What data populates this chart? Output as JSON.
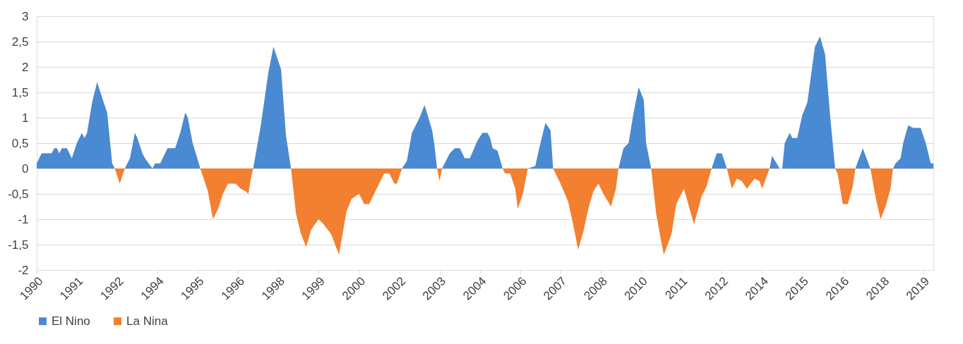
{
  "chart_data": {
    "type": "area",
    "legend": "bottom",
    "grid": "y",
    "ylim": [
      -2,
      3
    ],
    "yticks": [
      -2,
      {
        "value": -1.5,
        "label": "-1,5"
      },
      -1,
      {
        "value": -0.5,
        "label": "-0,5"
      },
      0,
      {
        "value": 0.5,
        "label": "0,5"
      },
      1,
      {
        "value": 1.5,
        "label": "1,5"
      },
      2,
      {
        "value": 2.5,
        "label": "2,5"
      },
      3
    ],
    "xlim": [
      "1990-01",
      "2019-09"
    ],
    "xticks": [
      {
        "value": "1990-01",
        "label": "1990"
      },
      {
        "value": "1991-05",
        "label": "1991"
      },
      {
        "value": "1992-09",
        "label": "1992"
      },
      {
        "value": "1994-01",
        "label": "1994"
      },
      {
        "value": "1995-05",
        "label": "1995"
      },
      {
        "value": "1996-09",
        "label": "1996"
      },
      {
        "value": "1998-01",
        "label": "1998"
      },
      {
        "value": "1999-05",
        "label": "1999"
      },
      {
        "value": "2000-09",
        "label": "2000"
      },
      {
        "value": "2002-01",
        "label": "2002"
      },
      {
        "value": "2003-05",
        "label": "2003"
      },
      {
        "value": "2004-09",
        "label": "2004"
      },
      {
        "value": "2006-01",
        "label": "2006"
      },
      {
        "value": "2007-05",
        "label": "2007"
      },
      {
        "value": "2008-09",
        "label": "2008"
      },
      {
        "value": "2010-01",
        "label": "2010"
      },
      {
        "value": "2011-05",
        "label": "2011"
      },
      {
        "value": "2012-09",
        "label": "2012"
      },
      {
        "value": "2014-01",
        "label": "2014"
      },
      {
        "value": "2015-05",
        "label": "2015"
      },
      {
        "value": "2016-09",
        "label": "2016"
      },
      {
        "value": "2018-01",
        "label": "2018"
      },
      {
        "value": "2019-05",
        "label": "2019"
      }
    ],
    "series": [
      {
        "name": "El Nino",
        "color": "#4a8ad2",
        "x": [
          "1990-01",
          "1990-03",
          "1990-07",
          "1990-08",
          "1990-09",
          "1990-10",
          "1990-11",
          "1991-01",
          "1991-03",
          "1991-05",
          "1991-07",
          "1991-08",
          "1991-09",
          "1991-11",
          "1992-01",
          "1992-03",
          "1992-05",
          "1992-06",
          "1992-07",
          "1992-08",
          "1992-12",
          "1993-02",
          "1993-04",
          "1993-05",
          "1993-07",
          "1993-08",
          "1993-11",
          "1993-12",
          "1994-02",
          "1994-05",
          "1994-08",
          "1994-10",
          "1994-12",
          "1995-01",
          "1995-03",
          "1995-06",
          "1997-03",
          "1997-06",
          "1997-09",
          "1997-11",
          "1998-02",
          "1998-04",
          "1998-06",
          "2002-02",
          "2002-04",
          "2002-06",
          "2002-09",
          "2002-11",
          "2003-02",
          "2003-03",
          "2003-04",
          "2003-06",
          "2003-09",
          "2003-11",
          "2004-01",
          "2004-03",
          "2004-05",
          "2004-08",
          "2004-10",
          "2004-12",
          "2005-01",
          "2005-02",
          "2005-04",
          "2005-06",
          "2006-04",
          "2006-07",
          "2006-09",
          "2006-11",
          "2007-01",
          "2007-02",
          "2009-04",
          "2009-06",
          "2009-08",
          "2009-10",
          "2009-12",
          "2010-02",
          "2010-03",
          "2010-05",
          "2012-05",
          "2012-07",
          "2012-09",
          "2012-11",
          "2014-04",
          "2014-05",
          "2014-08",
          "2014-09",
          "2014-10",
          "2014-12",
          "2015-01",
          "2015-03",
          "2015-05",
          "2015-07",
          "2015-10",
          "2015-12",
          "2016-02",
          "2016-04",
          "2016-06",
          "2017-02",
          "2017-05",
          "2017-08",
          "2018-05",
          "2018-06",
          "2018-08",
          "2018-09",
          "2018-11",
          "2019-01",
          "2019-04",
          "2019-06",
          "2019-08",
          "2019-09"
        ],
        "values": [
          0.1,
          0.3,
          0.3,
          0.4,
          0.4,
          0.3,
          0.4,
          0.4,
          0.2,
          0.5,
          0.7,
          0.6,
          0.7,
          1.3,
          1.7,
          1.4,
          1.1,
          0.6,
          0.1,
          0,
          0,
          0.2,
          0.7,
          0.6,
          0.3,
          0.2,
          0,
          0.1,
          0.1,
          0.4,
          0.4,
          0.7,
          1.1,
          1.0,
          0.5,
          0,
          0,
          0.85,
          1.9,
          2.4,
          1.95,
          0.65,
          0,
          0,
          0.15,
          0.7,
          1.0,
          1.25,
          0.75,
          0.45,
          0,
          0,
          0.3,
          0.4,
          0.4,
          0.2,
          0.2,
          0.55,
          0.7,
          0.7,
          0.6,
          0.4,
          0.35,
          0,
          0,
          0.05,
          0.5,
          0.9,
          0.75,
          0,
          0,
          0.4,
          0.5,
          1.1,
          1.6,
          1.35,
          0.5,
          0,
          0,
          0.3,
          0.3,
          0,
          0,
          0.25,
          0,
          0,
          0.5,
          0.7,
          0.6,
          0.6,
          1.05,
          1.3,
          2.4,
          2.6,
          2.25,
          1.05,
          0,
          0,
          0.4,
          0,
          0,
          0.1,
          0.2,
          0.5,
          0.85,
          0.8,
          0.8,
          0.5,
          0.1,
          0.1
        ]
      },
      {
        "name": "La Nina",
        "color": "#f28030",
        "x": [
          "1992-08",
          "1992-10",
          "1992-12",
          "1995-06",
          "1995-09",
          "1995-11",
          "1996-01",
          "1996-03",
          "1996-05",
          "1996-08",
          "1996-10",
          "1996-12",
          "1997-01",
          "1997-02",
          "1997-03",
          "1998-06",
          "1998-08",
          "1998-10",
          "1998-12",
          "1999-02",
          "1999-05",
          "1999-07",
          "1999-10",
          "2000-01",
          "2000-04",
          "2000-06",
          "2000-09",
          "2000-11",
          "2001-01",
          "2001-05",
          "2001-07",
          "2001-09",
          "2001-11",
          "2001-12",
          "2002-02",
          "2003-04",
          "2003-05",
          "2003-06",
          "2005-06",
          "2005-07",
          "2005-09",
          "2005-11",
          "2005-12",
          "2006-02",
          "2006-04",
          "2007-02",
          "2007-05",
          "2007-08",
          "2007-10",
          "2007-12",
          "2008-02",
          "2008-04",
          "2008-06",
          "2008-08",
          "2008-10",
          "2009-01",
          "2009-03",
          "2009-04",
          "2010-05",
          "2010-07",
          "2010-09",
          "2010-10",
          "2011-01",
          "2011-03",
          "2011-06",
          "2011-08",
          "2011-10",
          "2012-01",
          "2012-03",
          "2012-05",
          "2012-11",
          "2013-01",
          "2013-03",
          "2013-05",
          "2013-07",
          "2013-10",
          "2013-12",
          "2014-01",
          "2014-04",
          "2016-06",
          "2016-07",
          "2016-09",
          "2016-11",
          "2017-01",
          "2017-02",
          "2017-08",
          "2017-10",
          "2017-12",
          "2018-02",
          "2018-04",
          "2018-05"
        ],
        "values": [
          0,
          -0.3,
          0,
          0,
          -0.45,
          -1.0,
          -0.8,
          -0.5,
          -0.3,
          -0.3,
          -0.4,
          -0.45,
          -0.5,
          -0.2,
          0,
          0,
          -0.9,
          -1.3,
          -1.55,
          -1.2,
          -1.0,
          -1.1,
          -1.3,
          -1.7,
          -0.85,
          -0.6,
          -0.5,
          -0.7,
          -0.7,
          -0.3,
          -0.1,
          -0.1,
          -0.3,
          -0.3,
          0,
          0,
          -0.25,
          0,
          0,
          -0.1,
          -0.1,
          -0.4,
          -0.8,
          -0.5,
          0,
          0,
          -0.3,
          -0.65,
          -1.1,
          -1.6,
          -1.25,
          -0.8,
          -0.45,
          -0.3,
          -0.5,
          -0.75,
          -0.4,
          0,
          0,
          -0.9,
          -1.45,
          -1.7,
          -1.3,
          -0.7,
          -0.4,
          -0.75,
          -1.1,
          -0.55,
          -0.35,
          0,
          0,
          -0.4,
          -0.2,
          -0.25,
          -0.4,
          -0.2,
          -0.25,
          -0.4,
          0,
          0,
          -0.1,
          -0.7,
          -0.7,
          -0.35,
          0,
          0,
          -0.55,
          -1.0,
          -0.75,
          -0.4,
          0
        ]
      }
    ]
  }
}
